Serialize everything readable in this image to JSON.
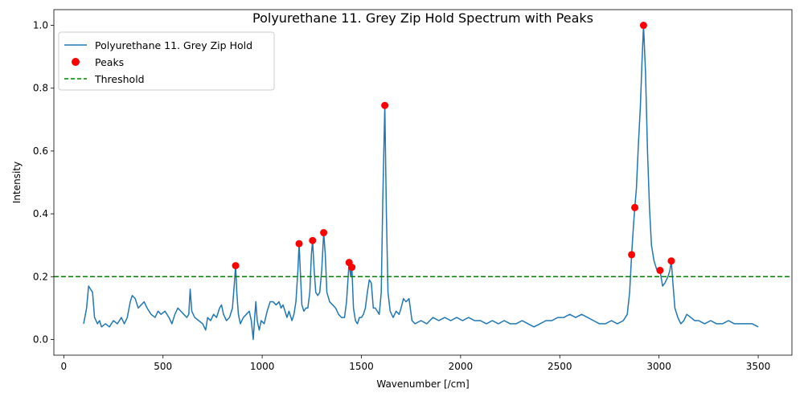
{
  "chart_data": {
    "type": "line",
    "title": "Polyurethane 11. Grey Zip Hold Spectrum with Peaks",
    "xlabel": "Wavenumber [/cm]",
    "ylabel": "Intensity",
    "xlim": [
      -50,
      3670
    ],
    "ylim": [
      -0.05,
      1.05
    ],
    "x_ticks": [
      0,
      500,
      1000,
      1500,
      2000,
      2500,
      3000,
      3500
    ],
    "y_ticks": [
      0.0,
      0.2,
      0.4,
      0.6,
      0.8,
      1.0
    ],
    "grid": false,
    "legend_position": "upper-left",
    "series": [
      {
        "name": "Polyurethane 11. Grey Zip Hold",
        "kind": "line",
        "color": "#1f77b4",
        "points": [
          [
            100,
            0.05
          ],
          [
            115,
            0.1
          ],
          [
            125,
            0.17
          ],
          [
            135,
            0.16
          ],
          [
            145,
            0.15
          ],
          [
            155,
            0.07
          ],
          [
            170,
            0.05
          ],
          [
            180,
            0.06
          ],
          [
            190,
            0.04
          ],
          [
            210,
            0.05
          ],
          [
            230,
            0.04
          ],
          [
            250,
            0.06
          ],
          [
            270,
            0.05
          ],
          [
            290,
            0.07
          ],
          [
            305,
            0.05
          ],
          [
            320,
            0.07
          ],
          [
            335,
            0.12
          ],
          [
            345,
            0.14
          ],
          [
            360,
            0.13
          ],
          [
            375,
            0.1
          ],
          [
            390,
            0.11
          ],
          [
            405,
            0.12
          ],
          [
            420,
            0.1
          ],
          [
            440,
            0.08
          ],
          [
            460,
            0.07
          ],
          [
            475,
            0.09
          ],
          [
            490,
            0.08
          ],
          [
            510,
            0.09
          ],
          [
            530,
            0.07
          ],
          [
            545,
            0.05
          ],
          [
            560,
            0.08
          ],
          [
            575,
            0.1
          ],
          [
            590,
            0.09
          ],
          [
            605,
            0.08
          ],
          [
            620,
            0.07
          ],
          [
            630,
            0.08
          ],
          [
            637,
            0.16
          ],
          [
            645,
            0.09
          ],
          [
            660,
            0.07
          ],
          [
            680,
            0.06
          ],
          [
            700,
            0.05
          ],
          [
            715,
            0.03
          ],
          [
            725,
            0.07
          ],
          [
            740,
            0.06
          ],
          [
            755,
            0.08
          ],
          [
            770,
            0.07
          ],
          [
            785,
            0.1
          ],
          [
            795,
            0.11
          ],
          [
            805,
            0.08
          ],
          [
            820,
            0.06
          ],
          [
            835,
            0.07
          ],
          [
            850,
            0.1
          ],
          [
            860,
            0.18
          ],
          [
            866,
            0.235
          ],
          [
            872,
            0.15
          ],
          [
            880,
            0.08
          ],
          [
            890,
            0.05
          ],
          [
            905,
            0.07
          ],
          [
            920,
            0.08
          ],
          [
            935,
            0.09
          ],
          [
            945,
            0.06
          ],
          [
            955,
            0.0
          ],
          [
            962,
            0.07
          ],
          [
            968,
            0.12
          ],
          [
            975,
            0.06
          ],
          [
            985,
            0.03
          ],
          [
            995,
            0.06
          ],
          [
            1010,
            0.05
          ],
          [
            1025,
            0.09
          ],
          [
            1040,
            0.12
          ],
          [
            1055,
            0.12
          ],
          [
            1070,
            0.11
          ],
          [
            1085,
            0.12
          ],
          [
            1095,
            0.1
          ],
          [
            1105,
            0.11
          ],
          [
            1115,
            0.09
          ],
          [
            1125,
            0.07
          ],
          [
            1135,
            0.09
          ],
          [
            1150,
            0.06
          ],
          [
            1160,
            0.08
          ],
          [
            1170,
            0.12
          ],
          [
            1180,
            0.22
          ],
          [
            1186,
            0.305
          ],
          [
            1192,
            0.22
          ],
          [
            1200,
            0.11
          ],
          [
            1210,
            0.09
          ],
          [
            1220,
            0.1
          ],
          [
            1230,
            0.1
          ],
          [
            1240,
            0.15
          ],
          [
            1248,
            0.27
          ],
          [
            1254,
            0.315
          ],
          [
            1262,
            0.22
          ],
          [
            1270,
            0.15
          ],
          [
            1280,
            0.14
          ],
          [
            1290,
            0.15
          ],
          [
            1300,
            0.22
          ],
          [
            1310,
            0.34
          ],
          [
            1318,
            0.27
          ],
          [
            1326,
            0.15
          ],
          [
            1340,
            0.12
          ],
          [
            1355,
            0.11
          ],
          [
            1370,
            0.1
          ],
          [
            1385,
            0.08
          ],
          [
            1400,
            0.07
          ],
          [
            1415,
            0.07
          ],
          [
            1425,
            0.12
          ],
          [
            1438,
            0.245
          ],
          [
            1446,
            0.2
          ],
          [
            1452,
            0.23
          ],
          [
            1460,
            0.1
          ],
          [
            1470,
            0.06
          ],
          [
            1480,
            0.05
          ],
          [
            1490,
            0.07
          ],
          [
            1500,
            0.07
          ],
          [
            1510,
            0.08
          ],
          [
            1520,
            0.1
          ],
          [
            1530,
            0.15
          ],
          [
            1540,
            0.19
          ],
          [
            1550,
            0.18
          ],
          [
            1560,
            0.1
          ],
          [
            1570,
            0.1
          ],
          [
            1580,
            0.09
          ],
          [
            1590,
            0.08
          ],
          [
            1600,
            0.15
          ],
          [
            1608,
            0.45
          ],
          [
            1618,
            0.745
          ],
          [
            1626,
            0.4
          ],
          [
            1634,
            0.15
          ],
          [
            1645,
            0.09
          ],
          [
            1660,
            0.07
          ],
          [
            1675,
            0.09
          ],
          [
            1690,
            0.08
          ],
          [
            1700,
            0.1
          ],
          [
            1712,
            0.13
          ],
          [
            1725,
            0.12
          ],
          [
            1740,
            0.13
          ],
          [
            1755,
            0.06
          ],
          [
            1770,
            0.05
          ],
          [
            1800,
            0.06
          ],
          [
            1830,
            0.05
          ],
          [
            1860,
            0.07
          ],
          [
            1890,
            0.06
          ],
          [
            1920,
            0.07
          ],
          [
            1950,
            0.06
          ],
          [
            1980,
            0.07
          ],
          [
            2010,
            0.06
          ],
          [
            2040,
            0.07
          ],
          [
            2070,
            0.06
          ],
          [
            2100,
            0.06
          ],
          [
            2130,
            0.05
          ],
          [
            2160,
            0.06
          ],
          [
            2190,
            0.05
          ],
          [
            2220,
            0.06
          ],
          [
            2250,
            0.05
          ],
          [
            2280,
            0.05
          ],
          [
            2310,
            0.06
          ],
          [
            2340,
            0.05
          ],
          [
            2370,
            0.04
          ],
          [
            2400,
            0.05
          ],
          [
            2430,
            0.06
          ],
          [
            2460,
            0.06
          ],
          [
            2490,
            0.07
          ],
          [
            2520,
            0.07
          ],
          [
            2550,
            0.08
          ],
          [
            2580,
            0.07
          ],
          [
            2610,
            0.08
          ],
          [
            2640,
            0.07
          ],
          [
            2670,
            0.06
          ],
          [
            2700,
            0.05
          ],
          [
            2730,
            0.05
          ],
          [
            2760,
            0.06
          ],
          [
            2790,
            0.05
          ],
          [
            2820,
            0.06
          ],
          [
            2840,
            0.08
          ],
          [
            2852,
            0.15
          ],
          [
            2862,
            0.27
          ],
          [
            2870,
            0.35
          ],
          [
            2878,
            0.42
          ],
          [
            2886,
            0.48
          ],
          [
            2896,
            0.62
          ],
          [
            2906,
            0.74
          ],
          [
            2914,
            0.88
          ],
          [
            2922,
            1.0
          ],
          [
            2932,
            0.85
          ],
          [
            2942,
            0.6
          ],
          [
            2952,
            0.42
          ],
          [
            2962,
            0.3
          ],
          [
            2975,
            0.25
          ],
          [
            2990,
            0.22
          ],
          [
            3005,
            0.22
          ],
          [
            3018,
            0.17
          ],
          [
            3030,
            0.18
          ],
          [
            3045,
            0.2
          ],
          [
            3055,
            0.22
          ],
          [
            3062,
            0.25
          ],
          [
            3070,
            0.18
          ],
          [
            3080,
            0.1
          ],
          [
            3095,
            0.07
          ],
          [
            3110,
            0.05
          ],
          [
            3125,
            0.06
          ],
          [
            3140,
            0.08
          ],
          [
            3160,
            0.07
          ],
          [
            3180,
            0.06
          ],
          [
            3200,
            0.06
          ],
          [
            3230,
            0.05
          ],
          [
            3260,
            0.06
          ],
          [
            3290,
            0.05
          ],
          [
            3320,
            0.05
          ],
          [
            3350,
            0.06
          ],
          [
            3380,
            0.05
          ],
          [
            3410,
            0.05
          ],
          [
            3440,
            0.05
          ],
          [
            3470,
            0.05
          ],
          [
            3500,
            0.04
          ]
        ]
      },
      {
        "name": "Peaks",
        "kind": "scatter",
        "color": "#ff0000",
        "points": [
          [
            866,
            0.235
          ],
          [
            1186,
            0.305
          ],
          [
            1254,
            0.315
          ],
          [
            1310,
            0.34
          ],
          [
            1438,
            0.245
          ],
          [
            1452,
            0.23
          ],
          [
            1618,
            0.745
          ],
          [
            2862,
            0.27
          ],
          [
            2878,
            0.42
          ],
          [
            2922,
            1.0
          ],
          [
            3005,
            0.22
          ],
          [
            3062,
            0.25
          ]
        ]
      },
      {
        "name": "Threshold",
        "kind": "hline",
        "color": "#008000",
        "y": 0.2
      }
    ]
  }
}
